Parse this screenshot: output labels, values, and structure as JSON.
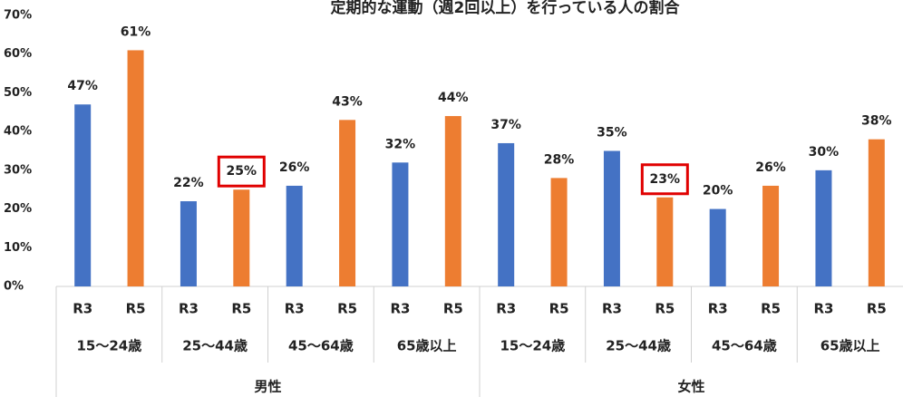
{
  "chart_data": {
    "type": "bar",
    "title": "定期的な運動（週2回以上）を行っている人の割合",
    "categories": [
      "15～24歳",
      "25～44歳",
      "45～64歳",
      "65歳以上",
      "15～24歳",
      "25～44歳",
      "45～64歳",
      "65歳以上"
    ],
    "groups": [
      {
        "name": "男性",
        "size": 4
      },
      {
        "name": "女性",
        "size": 4
      }
    ],
    "series": [
      {
        "name": "R3",
        "color": "#4472c4",
        "values": [
          47,
          22,
          26,
          32,
          37,
          35,
          20,
          30
        ],
        "value_labels": [
          "47%",
          "22%",
          "26%",
          "32%",
          "37%",
          "35%",
          "20%",
          "30%"
        ]
      },
      {
        "name": "R5",
        "color": "#ed7d31",
        "values": [
          61,
          25,
          43,
          44,
          28,
          23,
          26,
          38
        ],
        "value_labels": [
          "61%",
          "25%",
          "43%",
          "44%",
          "28%",
          "23%",
          "26%",
          "38%"
        ]
      }
    ],
    "highlight": [
      {
        "series": 1,
        "index": 1
      },
      {
        "series": 1,
        "index": 5
      }
    ],
    "highlight_color": "#e00000",
    "ylim": [
      0,
      70
    ],
    "yticks": [
      {
        "value": 0,
        "label": "0%"
      },
      {
        "value": 10,
        "label": "10%"
      },
      {
        "value": 20,
        "label": "20%"
      },
      {
        "value": 30,
        "label": "30%"
      },
      {
        "value": 40,
        "label": "40%"
      },
      {
        "value": 50,
        "label": "50%"
      },
      {
        "value": 60,
        "label": "60%"
      },
      {
        "value": 70,
        "label": "70%"
      }
    ]
  }
}
